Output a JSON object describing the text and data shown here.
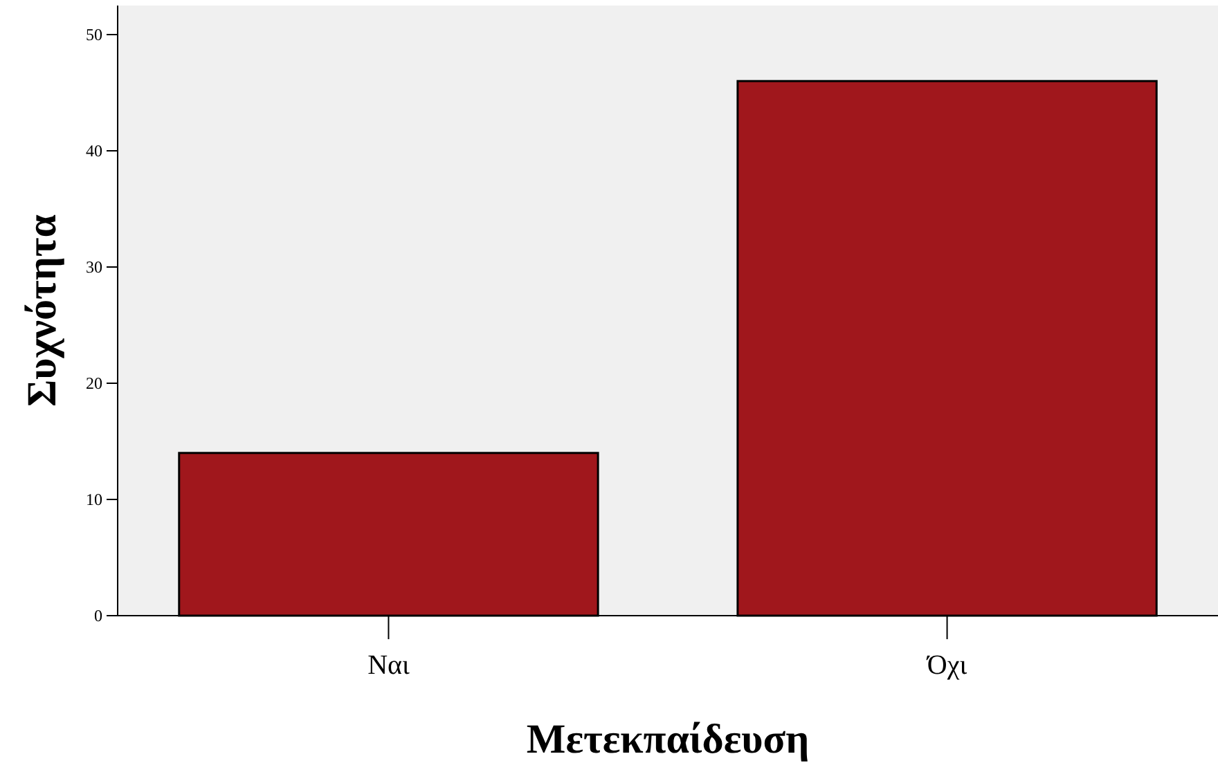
{
  "chart_data": {
    "type": "bar",
    "xlabel": "Μετεκπαίδευση",
    "ylabel": "Συχνότητα",
    "categories": [
      "Ναι",
      "Όχι"
    ],
    "values": [
      14,
      46
    ],
    "color": "#a0171c",
    "ylim": [
      0,
      52.5
    ],
    "yticks": [
      0,
      10,
      20,
      30,
      40,
      50
    ],
    "grid": false
  }
}
